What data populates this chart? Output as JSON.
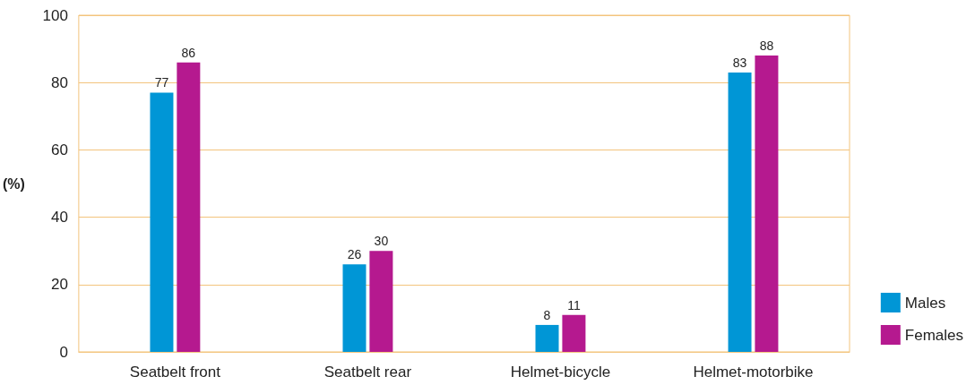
{
  "chart_data": {
    "type": "bar",
    "ylabel": "(%)",
    "categories": [
      "Seatbelt front",
      "Seatbelt rear",
      "Helmet-bicycle",
      "Helmet-motorbike"
    ],
    "series": [
      {
        "name": "Males",
        "color": "#0096d6",
        "values": [
          77,
          26,
          8,
          83
        ]
      },
      {
        "name": "Females",
        "color": "#b5198f",
        "values": [
          86,
          30,
          11,
          88
        ]
      }
    ],
    "ylim": [
      0,
      100
    ],
    "yticks": [
      0,
      20,
      40,
      60,
      80,
      100
    ],
    "grid": "y",
    "legend": "bottom right",
    "data_labels": true
  }
}
